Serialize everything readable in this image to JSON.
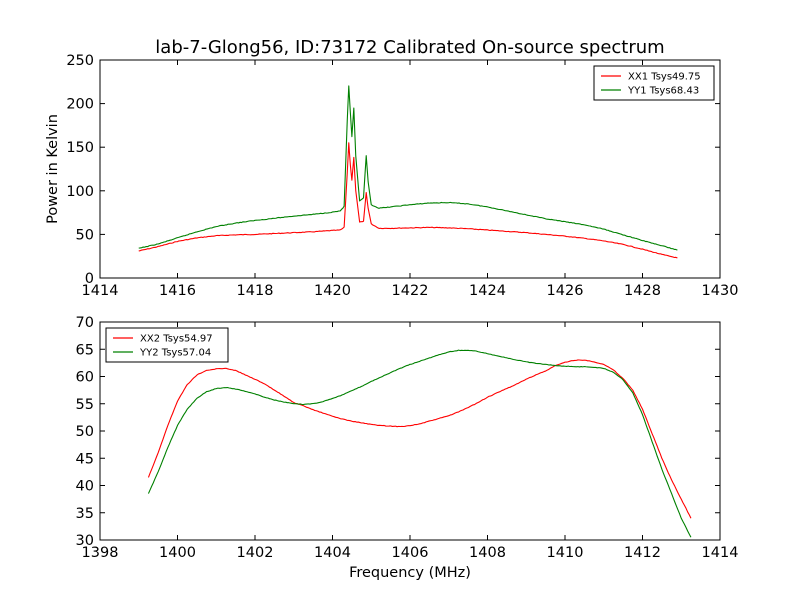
{
  "figure": {
    "title": "lab-7-Glong56, ID:73172 Calibrated On-source spectrum"
  },
  "chart_data": [
    {
      "type": "line",
      "title": "lab-7-Glong56, ID:73172 Calibrated On-source spectrum",
      "xlabel": "",
      "ylabel": "Power in Kelvin",
      "xlim": [
        1414,
        1430
      ],
      "ylim": [
        0,
        250
      ],
      "xticks": [
        1414,
        1416,
        1418,
        1420,
        1422,
        1424,
        1426,
        1428,
        1430
      ],
      "yticks": [
        0,
        50,
        100,
        150,
        200,
        250
      ],
      "grid": false,
      "legend_position": "top-right",
      "series": [
        {
          "name": "XX1 Tsys49.75",
          "color": "#ff0000",
          "points": [
            [
              1415.0,
              31
            ],
            [
              1415.5,
              36
            ],
            [
              1416.0,
              42
            ],
            [
              1416.5,
              46
            ],
            [
              1417.0,
              48.5
            ],
            [
              1417.5,
              49.5
            ],
            [
              1418.0,
              50
            ],
            [
              1418.5,
              51
            ],
            [
              1419.0,
              52
            ],
            [
              1419.5,
              53
            ],
            [
              1420.0,
              54.5
            ],
            [
              1420.2,
              55
            ],
            [
              1420.3,
              58
            ],
            [
              1420.38,
              120
            ],
            [
              1420.42,
              155
            ],
            [
              1420.46,
              130
            ],
            [
              1420.5,
              112
            ],
            [
              1420.55,
              138
            ],
            [
              1420.6,
              100
            ],
            [
              1420.7,
              64
            ],
            [
              1420.8,
              65
            ],
            [
              1420.87,
              98
            ],
            [
              1420.92,
              80
            ],
            [
              1421.0,
              62
            ],
            [
              1421.2,
              57
            ],
            [
              1421.5,
              57
            ],
            [
              1422.0,
              57.5
            ],
            [
              1422.5,
              58
            ],
            [
              1423.0,
              57.5
            ],
            [
              1423.5,
              56.5
            ],
            [
              1424.0,
              55
            ],
            [
              1424.5,
              53.5
            ],
            [
              1425.0,
              52
            ],
            [
              1425.5,
              50
            ],
            [
              1426.0,
              48
            ],
            [
              1426.5,
              45.5
            ],
            [
              1427.0,
              42.5
            ],
            [
              1427.5,
              38.5
            ],
            [
              1428.0,
              33
            ],
            [
              1428.5,
              27
            ],
            [
              1428.9,
              23
            ]
          ]
        },
        {
          "name": "YY1 Tsys68.43",
          "color": "#008000",
          "points": [
            [
              1415.0,
              34
            ],
            [
              1415.5,
              39
            ],
            [
              1416.0,
              46
            ],
            [
              1416.5,
              53
            ],
            [
              1417.0,
              59
            ],
            [
              1417.5,
              63
            ],
            [
              1418.0,
              66
            ],
            [
              1418.5,
              68.5
            ],
            [
              1419.0,
              71
            ],
            [
              1419.5,
              73
            ],
            [
              1420.0,
              75.5
            ],
            [
              1420.2,
              77
            ],
            [
              1420.3,
              82
            ],
            [
              1420.38,
              180
            ],
            [
              1420.42,
              220
            ],
            [
              1420.46,
              190
            ],
            [
              1420.5,
              162
            ],
            [
              1420.55,
              195
            ],
            [
              1420.6,
              140
            ],
            [
              1420.7,
              88
            ],
            [
              1420.8,
              92
            ],
            [
              1420.87,
              140
            ],
            [
              1420.92,
              110
            ],
            [
              1421.0,
              84
            ],
            [
              1421.2,
              80
            ],
            [
              1421.5,
              81.5
            ],
            [
              1422.0,
              84
            ],
            [
              1422.5,
              86
            ],
            [
              1423.0,
              86.5
            ],
            [
              1423.5,
              85
            ],
            [
              1424.0,
              81.5
            ],
            [
              1424.5,
              77
            ],
            [
              1425.0,
              72.5
            ],
            [
              1425.5,
              68
            ],
            [
              1426.0,
              64.5
            ],
            [
              1426.5,
              61
            ],
            [
              1427.0,
              56
            ],
            [
              1427.5,
              49.5
            ],
            [
              1428.0,
              43
            ],
            [
              1428.5,
              37
            ],
            [
              1428.9,
              32
            ]
          ]
        }
      ]
    },
    {
      "type": "line",
      "title": "",
      "xlabel": "Frequency (MHz)",
      "ylabel": "",
      "xlim": [
        1398,
        1414
      ],
      "ylim": [
        30,
        70
      ],
      "xticks": [
        1398,
        1400,
        1402,
        1404,
        1406,
        1408,
        1410,
        1412,
        1414
      ],
      "yticks": [
        30,
        35,
        40,
        45,
        50,
        55,
        60,
        65,
        70
      ],
      "grid": false,
      "legend_position": "top-left",
      "series": [
        {
          "name": "XX2 Tsys54.97",
          "color": "#ff0000",
          "points": [
            [
              1399.25,
              41.5
            ],
            [
              1399.5,
              46
            ],
            [
              1399.75,
              51
            ],
            [
              1400.0,
              55.5
            ],
            [
              1400.25,
              58.5
            ],
            [
              1400.5,
              60.3
            ],
            [
              1400.75,
              61.1
            ],
            [
              1401.0,
              61.4
            ],
            [
              1401.25,
              61.5
            ],
            [
              1401.5,
              61.1
            ],
            [
              1401.75,
              60.3
            ],
            [
              1402.0,
              59.5
            ],
            [
              1402.25,
              58.6
            ],
            [
              1402.5,
              57.5
            ],
            [
              1402.75,
              56.4
            ],
            [
              1403.0,
              55.2
            ],
            [
              1403.25,
              54.6
            ],
            [
              1403.5,
              53.9
            ],
            [
              1403.75,
              53.3
            ],
            [
              1404.0,
              52.7
            ],
            [
              1404.25,
              52.2
            ],
            [
              1404.5,
              51.8
            ],
            [
              1404.75,
              51.5
            ],
            [
              1405.0,
              51.2
            ],
            [
              1405.25,
              51.0
            ],
            [
              1405.5,
              50.9
            ],
            [
              1405.75,
              50.8
            ],
            [
              1406.0,
              51.0
            ],
            [
              1406.25,
              51.3
            ],
            [
              1406.5,
              51.8
            ],
            [
              1406.75,
              52.3
            ],
            [
              1407.0,
              52.8
            ],
            [
              1407.25,
              53.5
            ],
            [
              1407.5,
              54.3
            ],
            [
              1407.75,
              55.2
            ],
            [
              1408.0,
              56.2
            ],
            [
              1408.25,
              57.0
            ],
            [
              1408.5,
              57.8
            ],
            [
              1408.75,
              58.6
            ],
            [
              1409.0,
              59.5
            ],
            [
              1409.25,
              60.3
            ],
            [
              1409.5,
              61.0
            ],
            [
              1409.75,
              62.0
            ],
            [
              1410.0,
              62.6
            ],
            [
              1410.25,
              63.0
            ],
            [
              1410.5,
              63.0
            ],
            [
              1410.75,
              62.7
            ],
            [
              1411.0,
              62.2
            ],
            [
              1411.25,
              61.2
            ],
            [
              1411.5,
              59.6
            ],
            [
              1411.75,
              57.5
            ],
            [
              1412.0,
              54.0
            ],
            [
              1412.25,
              49.5
            ],
            [
              1412.5,
              45.0
            ],
            [
              1412.75,
              41.0
            ],
            [
              1413.0,
              37.5
            ],
            [
              1413.25,
              34.0
            ]
          ]
        },
        {
          "name": "YY2 Tsys57.04",
          "color": "#008000",
          "points": [
            [
              1399.25,
              38.5
            ],
            [
              1399.5,
              42.5
            ],
            [
              1399.75,
              47.0
            ],
            [
              1400.0,
              51.0
            ],
            [
              1400.25,
              54.0
            ],
            [
              1400.5,
              56.0
            ],
            [
              1400.75,
              57.2
            ],
            [
              1401.0,
              57.8
            ],
            [
              1401.25,
              58.0
            ],
            [
              1401.5,
              57.7
            ],
            [
              1401.75,
              57.3
            ],
            [
              1402.0,
              56.8
            ],
            [
              1402.25,
              56.2
            ],
            [
              1402.5,
              55.7
            ],
            [
              1402.75,
              55.3
            ],
            [
              1403.0,
              55.0
            ],
            [
              1403.25,
              54.9
            ],
            [
              1403.5,
              55.0
            ],
            [
              1403.75,
              55.4
            ],
            [
              1404.0,
              56.0
            ],
            [
              1404.25,
              56.6
            ],
            [
              1404.5,
              57.4
            ],
            [
              1404.75,
              58.2
            ],
            [
              1405.0,
              59.1
            ],
            [
              1405.25,
              59.9
            ],
            [
              1405.5,
              60.7
            ],
            [
              1405.75,
              61.5
            ],
            [
              1406.0,
              62.2
            ],
            [
              1406.25,
              62.8
            ],
            [
              1406.5,
              63.4
            ],
            [
              1406.75,
              64.0
            ],
            [
              1407.0,
              64.5
            ],
            [
              1407.25,
              64.8
            ],
            [
              1407.5,
              64.8
            ],
            [
              1407.75,
              64.6
            ],
            [
              1408.0,
              64.2
            ],
            [
              1408.25,
              63.8
            ],
            [
              1408.5,
              63.4
            ],
            [
              1408.75,
              63.0
            ],
            [
              1409.0,
              62.7
            ],
            [
              1409.25,
              62.4
            ],
            [
              1409.5,
              62.2
            ],
            [
              1409.75,
              62.0
            ],
            [
              1410.0,
              61.9
            ],
            [
              1410.25,
              61.8
            ],
            [
              1410.5,
              61.8
            ],
            [
              1410.75,
              61.7
            ],
            [
              1411.0,
              61.5
            ],
            [
              1411.25,
              60.8
            ],
            [
              1411.5,
              59.4
            ],
            [
              1411.75,
              57.0
            ],
            [
              1412.0,
              53.0
            ],
            [
              1412.25,
              48.0
            ],
            [
              1412.5,
              43.0
            ],
            [
              1412.75,
              38.5
            ],
            [
              1413.0,
              34.0
            ],
            [
              1413.25,
              30.5
            ]
          ]
        }
      ]
    }
  ]
}
